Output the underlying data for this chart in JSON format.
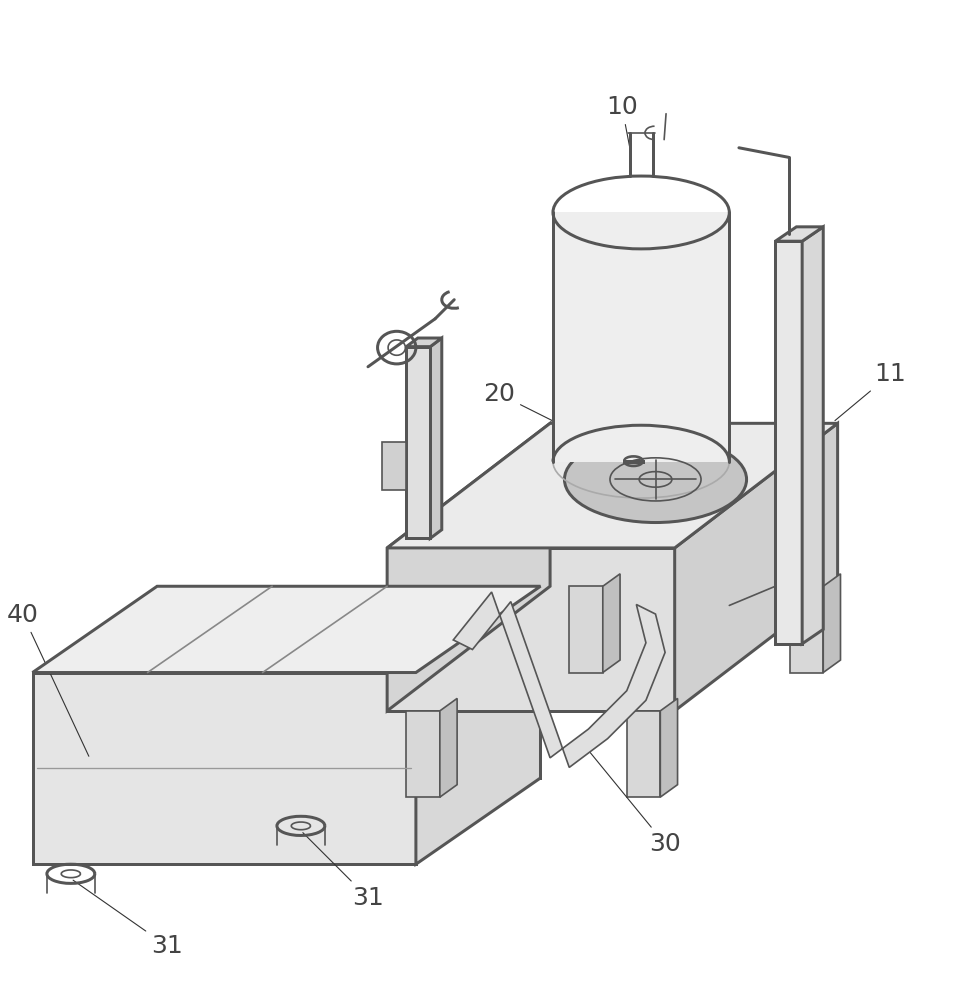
{
  "background_color": "#ffffff",
  "line_color": "#555555",
  "line_width": 1.2,
  "label_fontsize": 18,
  "label_color": "#444444",
  "figsize": [
    9.65,
    10.0
  ],
  "dpi": 100
}
